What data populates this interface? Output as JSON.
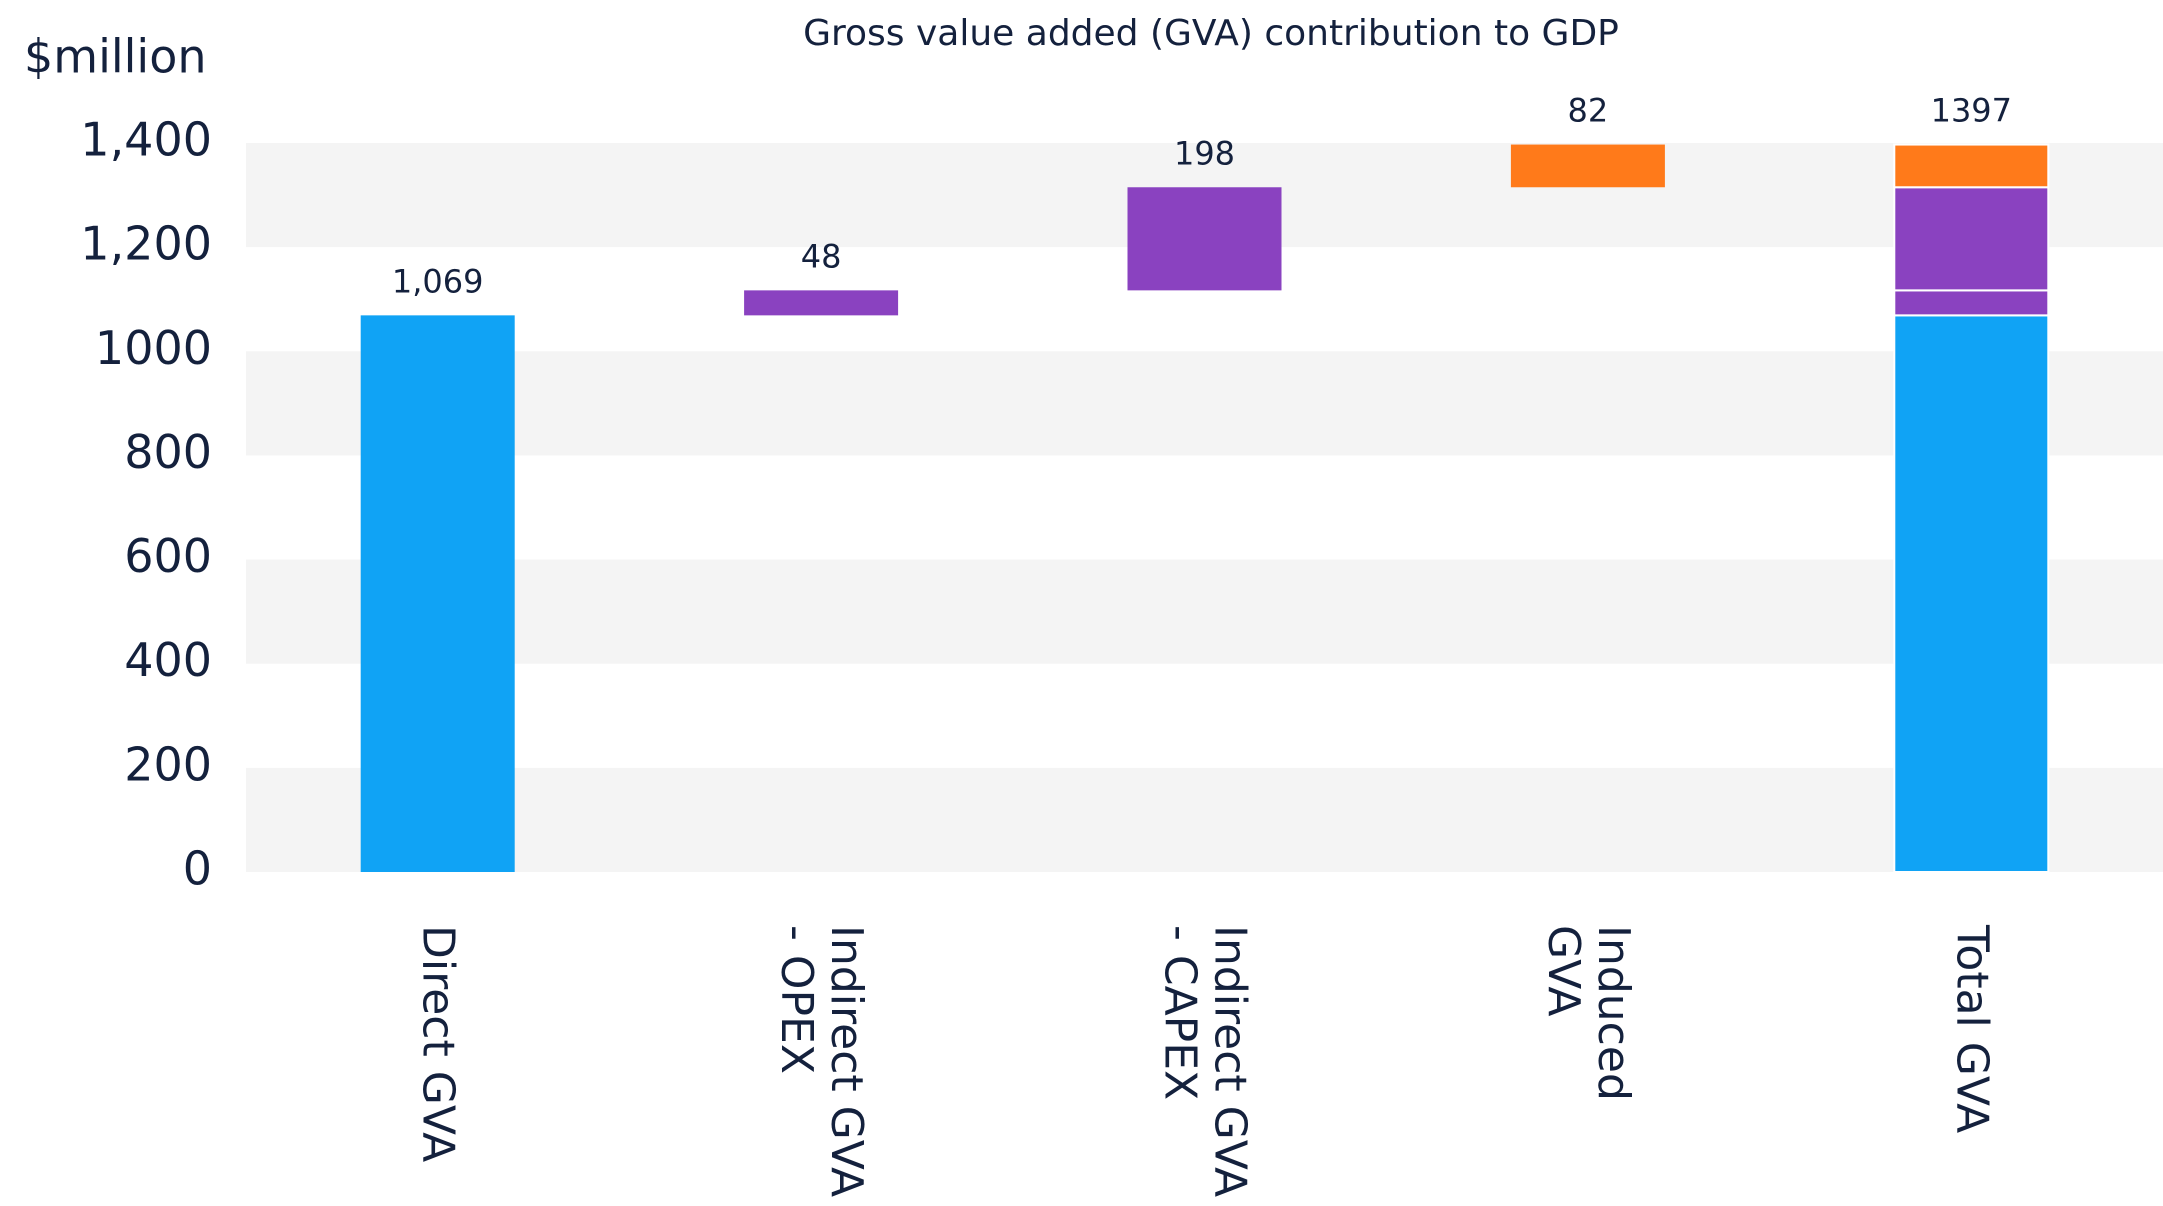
{
  "chart_data": {
    "type": "waterfall",
    "title": "Gross value added (GVA) contribution to GDP",
    "y_label": "$million",
    "categories": [
      "Direct GVA",
      "Indirect GVA - OPEX",
      "Indirect GVA - CAPEX",
      "Induced GVA",
      "Total GVA"
    ],
    "values": [
      1069,
      48,
      198,
      82,
      1397
    ],
    "value_labels": [
      "1,069",
      "48",
      "198",
      "82",
      "1397"
    ],
    "colors": [
      "#10a3f5",
      "#8a42c0",
      "#8a42c0",
      "#ff7a1a",
      "#10a3f5"
    ],
    "total_index": 4,
    "ylim": [
      0,
      1400
    ],
    "yticks": [
      0,
      200,
      400,
      600,
      800,
      1000,
      {
        "value": 1200,
        "label": "1,200"
      },
      {
        "value": 1400,
        "label": "1,400"
      }
    ],
    "grid": "bands"
  }
}
